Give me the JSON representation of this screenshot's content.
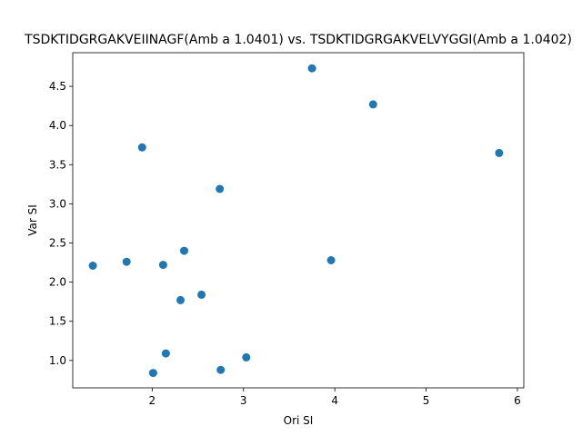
{
  "chart_data": {
    "type": "scatter",
    "title": "TSDKTIDGRGAKVEIINAGF(Amb a 1.0401) vs. TSDKTIDGRGAKVELVYGGI(Amb a 1.0402)",
    "xlabel": "Ori SI",
    "ylabel": "Var SI",
    "xlim": [
      1.13,
      6.07
    ],
    "ylim": [
      0.65,
      4.93
    ],
    "xticks": [
      2,
      3,
      4,
      5,
      6
    ],
    "xtick_labels": [
      "2",
      "3",
      "4",
      "5",
      "6"
    ],
    "yticks": [
      1.0,
      1.5,
      2.0,
      2.5,
      3.0,
      3.5,
      4.0,
      4.5
    ],
    "ytick_labels": [
      "1.0",
      "1.5",
      "2.0",
      "2.5",
      "3.0",
      "3.5",
      "4.0",
      "4.5"
    ],
    "grid": false,
    "marker_color": "#1f77b4",
    "points": [
      {
        "x": 3.75,
        "y": 4.73
      },
      {
        "x": 4.42,
        "y": 4.27
      },
      {
        "x": 5.8,
        "y": 3.65
      },
      {
        "x": 1.89,
        "y": 3.72
      },
      {
        "x": 2.74,
        "y": 3.19
      },
      {
        "x": 2.35,
        "y": 2.4
      },
      {
        "x": 3.96,
        "y": 2.28
      },
      {
        "x": 1.35,
        "y": 2.21
      },
      {
        "x": 1.72,
        "y": 2.26
      },
      {
        "x": 2.12,
        "y": 2.22
      },
      {
        "x": 2.54,
        "y": 1.84
      },
      {
        "x": 2.31,
        "y": 1.77
      },
      {
        "x": 2.15,
        "y": 1.09
      },
      {
        "x": 3.03,
        "y": 1.04
      },
      {
        "x": 2.75,
        "y": 0.88
      },
      {
        "x": 2.01,
        "y": 0.84
      }
    ]
  }
}
